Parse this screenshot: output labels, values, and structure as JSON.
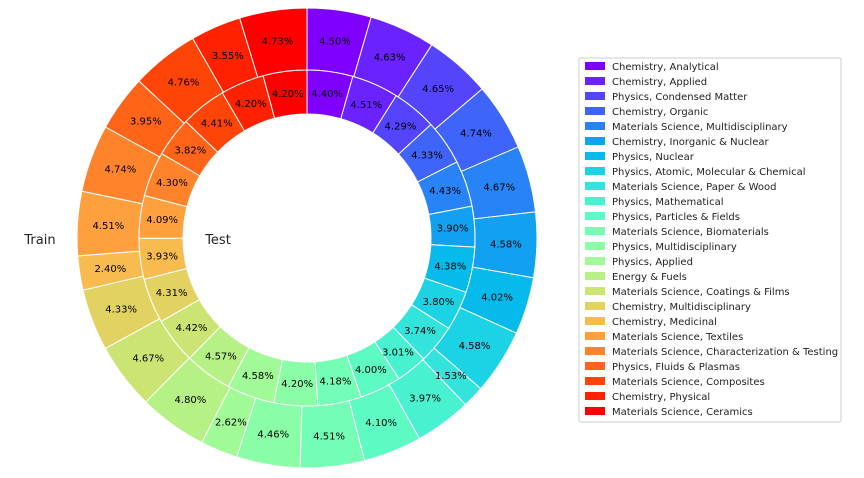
{
  "chart_data": {
    "type": "pie",
    "variant": "nested-donut",
    "legend_placement": "right",
    "categories": [
      "Chemistry, Analytical",
      "Chemistry, Applied",
      "Physics, Condensed Matter",
      "Chemistry, Organic",
      "Materials Science, Multidisciplinary",
      "Chemistry, Inorganic & Nuclear",
      "Physics, Nuclear",
      "Physics, Atomic, Molecular & Chemical",
      "Materials Science, Paper & Wood",
      "Physics, Mathematical",
      "Physics, Particles & Fields",
      "Materials Science, Biomaterials",
      "Physics, Multidisciplinary",
      "Physics, Applied",
      "Energy & Fuels",
      "Materials Science, Coatings & Films",
      "Chemistry, Multidisciplinary",
      "Chemistry, Medicinal",
      "Materials Science, Textiles",
      "Materials Science, Characterization & Testing",
      "Physics, Fluids & Plasmas",
      "Materials Science, Composites",
      "Chemistry, Physical",
      "Materials Science, Ceramics"
    ],
    "colors": [
      "#8000ff",
      "#6a22fe",
      "#5444fd",
      "#3e64f9",
      "#2884f6",
      "#12a1f0",
      "#06bbeb",
      "#1cd2e5",
      "#32e4dc",
      "#48f1d0",
      "#5efac3",
      "#74feb5",
      "#8afea6",
      "#a0fa96",
      "#b6f185",
      "#cce474",
      "#e2d262",
      "#f8bb50",
      "#ffa03e",
      "#ff832b",
      "#ff6419",
      "#ff4407",
      "#ff2100",
      "#ff0000"
    ],
    "series": [
      {
        "name": "Train",
        "ring": "outer",
        "values": [
          4.5,
          4.63,
          4.65,
          4.74,
          4.67,
          4.58,
          4.02,
          4.58,
          1.53,
          3.97,
          4.1,
          4.51,
          4.46,
          2.62,
          4.8,
          4.67,
          4.33,
          2.4,
          4.51,
          4.74,
          3.95,
          4.76,
          3.55,
          4.73
        ],
        "labels": [
          "4.50%",
          "4.63%",
          "4.65%",
          "4.74%",
          "4.67%",
          "4.58%",
          "4.02%",
          "4.58%",
          "1.53%",
          "3.97%",
          "4.10%",
          "4.51%",
          "4.46%",
          "2.62%",
          "4.80%",
          "4.67%",
          "4.33%",
          "2.40%",
          "4.51%",
          "4.74%",
          "3.95%",
          "4.76%",
          "3.55%",
          "4.73%"
        ]
      },
      {
        "name": "Test",
        "ring": "inner",
        "values": [
          4.4,
          4.51,
          4.29,
          4.33,
          4.43,
          3.9,
          4.38,
          3.8,
          3.74,
          3.01,
          4.0,
          4.18,
          4.2,
          4.58,
          4.57,
          4.42,
          4.31,
          3.93,
          4.09,
          4.3,
          3.82,
          4.41,
          4.2,
          4.2
        ],
        "labels": [
          "4.40%",
          "4.51%",
          "4.29%",
          "4.33%",
          "4.43%",
          "3.90%",
          "4.38%",
          "3.80%",
          "3.74%",
          "3.01%",
          "4.00%",
          "4.18%",
          "4.20%",
          "4.58%",
          "4.57%",
          "4.42%",
          "4.31%",
          "3.93%",
          "4.09%",
          "4.30%",
          "3.82%",
          "4.41%",
          "4.20%",
          "4.20%"
        ]
      }
    ]
  }
}
